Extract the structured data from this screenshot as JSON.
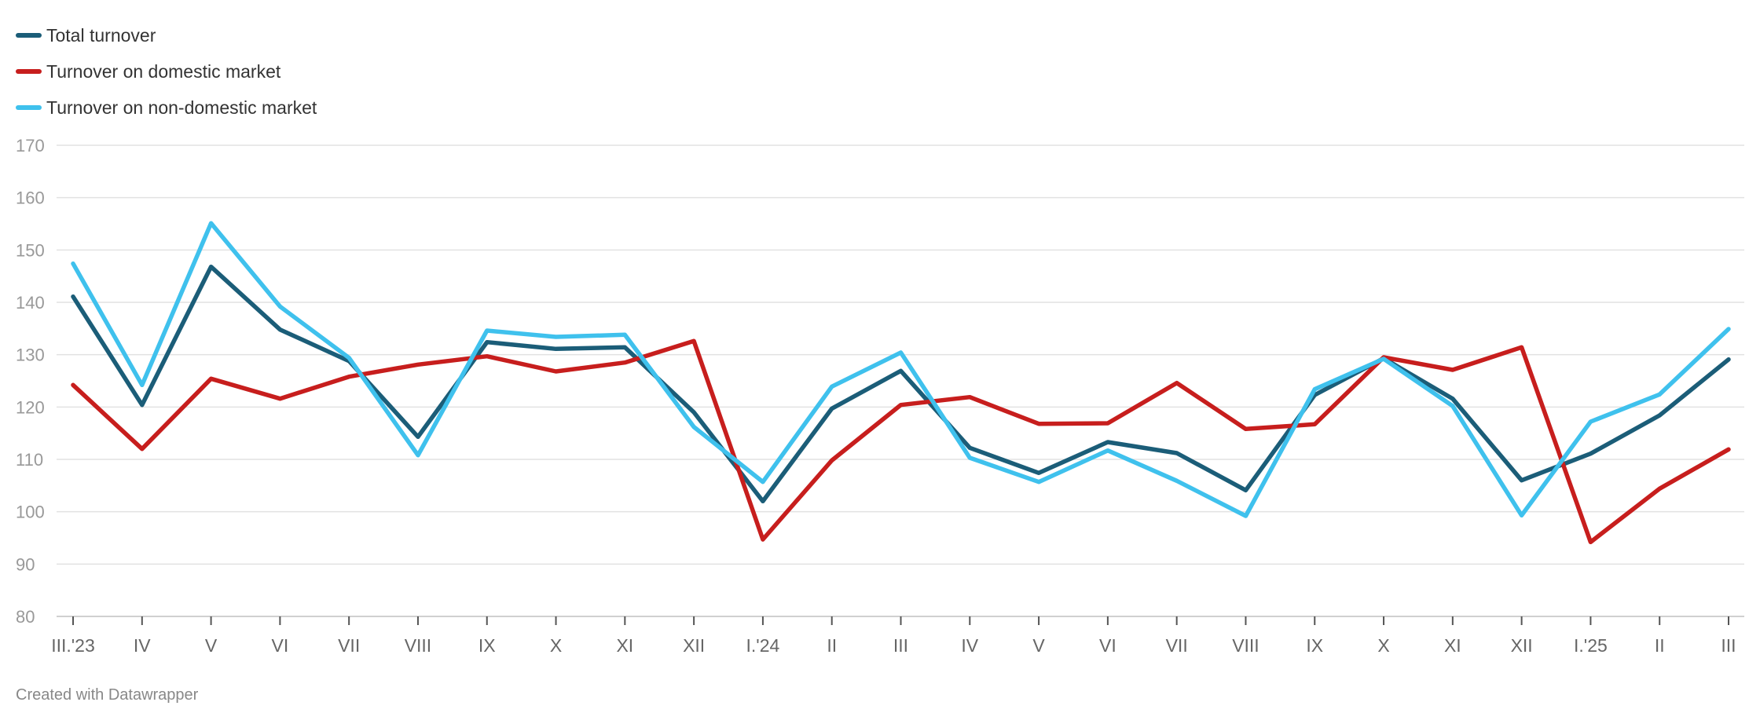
{
  "legend": [
    {
      "label": "Total turnover",
      "color": "#1b5d78"
    },
    {
      "label": "Turnover on domestic market",
      "color": "#c71e1d"
    },
    {
      "label": "Turnover on non-domestic market",
      "color": "#3fc1ed"
    }
  ],
  "footer": {
    "text": "Created with Datawrapper"
  },
  "chart_data": {
    "type": "line",
    "title": "",
    "xlabel": "",
    "ylabel": "",
    "ylim": [
      80,
      170
    ],
    "yticks": [
      170,
      160,
      150,
      140,
      130,
      120,
      110,
      100,
      90,
      80
    ],
    "grid": true,
    "legend_position": "top-left",
    "categories": [
      "III.'23",
      "IV",
      "V",
      "VI",
      "VII",
      "VIII",
      "IX",
      "X",
      "XI",
      "XII",
      "I.'24",
      "II",
      "III",
      "IV",
      "V",
      "VI",
      "VII",
      "VIII",
      "IX",
      "X",
      "XI",
      "XII",
      "I.'25",
      "II",
      "III"
    ],
    "series": [
      {
        "name": "Total turnover",
        "color": "#1b5d78",
        "values": [
          141.1,
          120.4,
          146.8,
          134.8,
          128.8,
          114.3,
          132.4,
          131.1,
          131.4,
          119.0,
          102.0,
          119.7,
          126.9,
          112.2,
          107.4,
          113.3,
          111.2,
          104.1,
          122.3,
          129.3,
          121.6,
          106.0,
          111.1,
          118.4,
          129.1
        ]
      },
      {
        "name": "Turnover on domestic market",
        "color": "#c71e1d",
        "values": [
          124.2,
          112.0,
          125.4,
          121.6,
          125.8,
          128.1,
          129.7,
          126.8,
          128.5,
          132.6,
          94.7,
          109.8,
          120.4,
          121.9,
          116.8,
          116.9,
          124.6,
          115.8,
          116.7,
          129.5,
          127.1,
          131.4,
          94.2,
          104.4,
          111.9
        ]
      },
      {
        "name": "Turnover on non-domestic market",
        "color": "#3fc1ed",
        "values": [
          147.4,
          124.2,
          155.1,
          139.2,
          129.4,
          110.8,
          134.6,
          133.4,
          133.8,
          116.2,
          105.7,
          123.9,
          130.4,
          110.3,
          105.7,
          111.7,
          105.9,
          99.2,
          123.4,
          129.2,
          120.2,
          99.3,
          117.2,
          122.4,
          134.9
        ]
      }
    ]
  }
}
